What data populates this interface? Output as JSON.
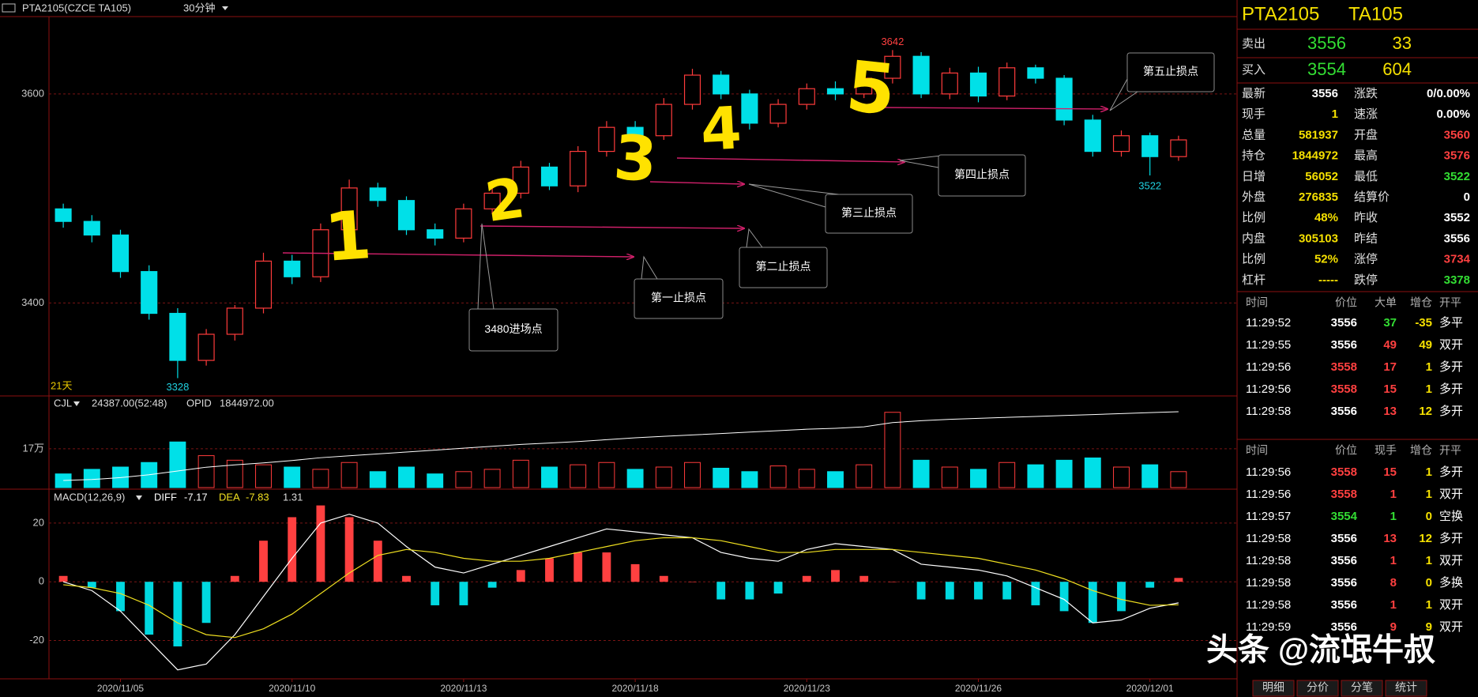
{
  "toolbar": {
    "symbol": "PTA2105(CZCE TA105)",
    "period": "30分钟"
  },
  "chart_data": [
    {
      "type": "candlestick",
      "categories": [
        null,
        null,
        "2020/11/05",
        null,
        null,
        null,
        null,
        null,
        "2020/11/10",
        null,
        null,
        null,
        null,
        null,
        "2020/11/13",
        null,
        null,
        null,
        null,
        null,
        "2020/11/18",
        null,
        null,
        null,
        null,
        null,
        "2020/11/23",
        null,
        null,
        null,
        null,
        null,
        "2020/11/26",
        null,
        null,
        null,
        null,
        null,
        "2020/12/01",
        null
      ],
      "open": [
        3490,
        3478,
        3465,
        3430,
        3390,
        3345,
        3370,
        3395,
        3440,
        3425,
        3470,
        3510,
        3498,
        3470,
        3462,
        3490,
        3505,
        3530,
        3512,
        3545,
        3568,
        3560,
        3590,
        3618,
        3600,
        3572,
        3590,
        3605,
        3600,
        3615,
        3636,
        3600,
        3620,
        3598,
        3625,
        3615,
        3575,
        3545,
        3560,
        3540
      ],
      "high": [
        3495,
        3484,
        3470,
        3436,
        3395,
        3375,
        3398,
        3448,
        3446,
        3476,
        3518,
        3515,
        3502,
        3476,
        3495,
        3512,
        3536,
        3534,
        3550,
        3574,
        3574,
        3596,
        3624,
        3622,
        3604,
        3595,
        3610,
        3612,
        3620,
        3642,
        3640,
        3625,
        3626,
        3630,
        3628,
        3618,
        3580,
        3565,
        3563,
        3560
      ],
      "low": [
        3472,
        3458,
        3424,
        3384,
        3328,
        3340,
        3364,
        3390,
        3418,
        3420,
        3465,
        3492,
        3465,
        3455,
        3458,
        3485,
        3500,
        3508,
        3506,
        3540,
        3555,
        3556,
        3585,
        3595,
        3566,
        3568,
        3585,
        3594,
        3596,
        3610,
        3596,
        3595,
        3592,
        3594,
        3610,
        3570,
        3540,
        3540,
        3522,
        3536
      ],
      "close": [
        3478,
        3465,
        3430,
        3390,
        3345,
        3370,
        3395,
        3440,
        3425,
        3470,
        3510,
        3498,
        3470,
        3462,
        3490,
        3505,
        3530,
        3512,
        3545,
        3568,
        3560,
        3590,
        3618,
        3600,
        3572,
        3590,
        3605,
        3600,
        3615,
        3636,
        3600,
        3620,
        3598,
        3625,
        3615,
        3575,
        3545,
        3560,
        3540,
        3556
      ],
      "ylim": [
        3311,
        3674
      ],
      "yticks": [
        3400,
        3600
      ],
      "grid": true,
      "up_color": "#ff3b3b",
      "down_color": "#00e0e8",
      "period_label": "21天"
    },
    {
      "type": "bar",
      "series": [
        {
          "name": "CJL",
          "values": [
            60000,
            80000,
            90000,
            110000,
            200000,
            140000,
            120000,
            100000,
            90000,
            80000,
            110000,
            70000,
            90000,
            60000,
            70000,
            80000,
            120000,
            90000,
            100000,
            110000,
            80000,
            90000,
            110000,
            85000,
            70000,
            95000,
            80000,
            70000,
            100000,
            330000,
            120000,
            90000,
            80000,
            110000,
            100000,
            120000,
            130000,
            90000,
            100000,
            70000
          ]
        },
        {
          "name": "OPID",
          "color": "#ffffff",
          "axis": "y2",
          "values": [
            1700000,
            1702000,
            1706000,
            1712000,
            1720000,
            1728000,
            1733000,
            1737000,
            1742000,
            1748000,
            1752000,
            1756000,
            1760000,
            1764000,
            1768000,
            1772000,
            1776000,
            1779000,
            1782000,
            1786000,
            1790000,
            1793000,
            1796000,
            1799000,
            1802000,
            1805000,
            1808000,
            1810000,
            1813000,
            1822000,
            1826000,
            1829000,
            1831000,
            1833000,
            1835000,
            1837000,
            1839000,
            1841000,
            1843000,
            1844972
          ]
        }
      ],
      "readout": "24387.00(52:48)",
      "opid_readout": "1844972.00",
      "ylim": [
        0,
        388000
      ],
      "yticks": [
        {
          "value": 170000,
          "label": "17万"
        }
      ],
      "y2lim": [
        1685000,
        1871600
      ],
      "grid": true
    },
    {
      "type": "macd",
      "title": "MACD(12,26,9)",
      "series": [
        {
          "name": "DIFF",
          "color": "#ffffff",
          "values": [
            0,
            -3,
            -10,
            -20,
            -30,
            -28,
            -18,
            -5,
            8,
            20,
            23,
            20,
            12,
            5,
            3,
            6,
            9,
            12,
            15,
            18,
            17,
            16,
            15,
            10,
            8,
            7,
            11,
            13,
            12,
            11,
            6,
            5,
            4,
            2,
            -2,
            -6,
            -14,
            -13,
            -9,
            -7.17
          ]
        },
        {
          "name": "DEA",
          "color": "#f0e020",
          "values": [
            -1,
            -2,
            -4,
            -8,
            -14,
            -18,
            -19,
            -16,
            -11,
            -4,
            3,
            9,
            11,
            10,
            8,
            7,
            7,
            8,
            10,
            12,
            14,
            15,
            15,
            14,
            12,
            10,
            10,
            11,
            11,
            11,
            10,
            9,
            8,
            6,
            4,
            1,
            -3,
            -6,
            -8,
            -7.83
          ]
        }
      ],
      "histogram": {
        "values": [
          2,
          -2,
          -10,
          -18,
          -22,
          -14,
          2,
          14,
          22,
          26,
          22,
          14,
          2,
          -8,
          -8,
          -2,
          4,
          8,
          10,
          10,
          6,
          2,
          0,
          -6,
          -6,
          -4,
          2,
          4,
          2,
          0,
          -6,
          -6,
          -6,
          -6,
          -8,
          -10,
          -14,
          -10,
          -2,
          1.31
        ],
        "up_color": "#ff4040",
        "down_color": "#00d8e0"
      },
      "ylim": [
        -32.5,
        31
      ],
      "yticks": [
        -20,
        0,
        20
      ],
      "grid": true
    }
  ],
  "annotations": {
    "digits": [
      "1",
      "2",
      "3",
      "4",
      "5"
    ],
    "callouts": [
      "3480进场点",
      "第一止损点",
      "第二止损点",
      "第三止损点",
      "第四止损点",
      "第五止损点"
    ]
  },
  "quote": {
    "symbol": "PTA2105",
    "code": "TA105",
    "ask": {
      "label": "卖出",
      "price": 3556,
      "volume": 33
    },
    "bid": {
      "label": "买入",
      "price": 3554,
      "volume": 604
    },
    "stats": [
      [
        {
          "label": "最新",
          "value": 3556,
          "color": "#ffffff"
        },
        {
          "label": "涨跌",
          "value": "0/0.00%",
          "color": "#ffffff"
        }
      ],
      [
        {
          "label": "现手",
          "value": 1,
          "color": "#f5e000"
        },
        {
          "label": "速涨",
          "value": "0.00%",
          "color": "#ffffff"
        }
      ],
      [
        {
          "label": "总量",
          "value": 581937,
          "color": "#f5e000"
        },
        {
          "label": "开盘",
          "value": 3560,
          "color": "#ff4040"
        }
      ],
      [
        {
          "label": "持仓",
          "value": 1844972,
          "color": "#f5e000"
        },
        {
          "label": "最高",
          "value": 3576,
          "color": "#ff4040"
        }
      ],
      [
        {
          "label": "日增",
          "value": 56052,
          "color": "#f5e000"
        },
        {
          "label": "最低",
          "value": 3522,
          "color": "#33dd33"
        }
      ],
      [
        {
          "label": "外盘",
          "value": 276835,
          "color": "#f5e000"
        },
        {
          "label": "结算价",
          "value": 0,
          "color": "#ffffff"
        }
      ],
      [
        {
          "label": "比例",
          "value": "48%",
          "color": "#f5e000"
        },
        {
          "label": "昨收",
          "value": 3552,
          "color": "#ffffff"
        }
      ],
      [
        {
          "label": "内盘",
          "value": 305103,
          "color": "#f5e000"
        },
        {
          "label": "昨结",
          "value": 3556,
          "color": "#ffffff"
        }
      ],
      [
        {
          "label": "比例",
          "value": "52%",
          "color": "#f5e000"
        },
        {
          "label": "涨停",
          "value": 3734,
          "color": "#ff4040"
        }
      ],
      [
        {
          "label": "杠杆",
          "value": "-----",
          "color": "#f5e000"
        },
        {
          "label": "跌停",
          "value": 3378,
          "color": "#33dd33"
        }
      ]
    ]
  },
  "trades_large": {
    "columns": [
      "时间",
      "价位",
      "大单",
      "增仓",
      "开平"
    ],
    "rows": [
      {
        "time": "11:29:52",
        "price": 3556,
        "qty": 37,
        "oi": -35,
        "type": "多平",
        "price_color": "#ffffff",
        "qty_color": "#33dd33"
      },
      {
        "time": "11:29:55",
        "price": 3556,
        "qty": 49,
        "oi": 49,
        "type": "双开",
        "price_color": "#ffffff",
        "qty_color": "#ff4040"
      },
      {
        "time": "11:29:56",
        "price": 3558,
        "qty": 17,
        "oi": 1,
        "type": "多开",
        "price_color": "#ff4040",
        "qty_color": "#ff4040"
      },
      {
        "time": "11:29:56",
        "price": 3558,
        "qty": 15,
        "oi": 1,
        "type": "多开",
        "price_color": "#ff4040",
        "qty_color": "#ff4040"
      },
      {
        "time": "11:29:58",
        "price": 3556,
        "qty": 13,
        "oi": 12,
        "type": "多开",
        "price_color": "#ffffff",
        "qty_color": "#ff4040"
      }
    ]
  },
  "trades": {
    "columns": [
      "时间",
      "价位",
      "现手",
      "增仓",
      "开平"
    ],
    "rows": [
      {
        "time": "11:29:56",
        "price": 3558,
        "qty": 15,
        "oi": 1,
        "type": "多开",
        "price_color": "#ff4040",
        "qty_color": "#ff4040"
      },
      {
        "time": "11:29:56",
        "price": 3558,
        "qty": 1,
        "oi": 1,
        "type": "双开",
        "price_color": "#ff4040",
        "qty_color": "#ff4040"
      },
      {
        "time": "11:29:57",
        "price": 3554,
        "qty": 1,
        "oi": 0,
        "type": "空换",
        "price_color": "#33dd33",
        "qty_color": "#33dd33"
      },
      {
        "time": "11:29:58",
        "price": 3556,
        "qty": 13,
        "oi": 12,
        "type": "多开",
        "price_color": "#ffffff",
        "qty_color": "#ff4040"
      },
      {
        "time": "11:29:58",
        "price": 3556,
        "qty": 1,
        "oi": 1,
        "type": "双开",
        "price_color": "#ffffff",
        "qty_color": "#ff4040"
      },
      {
        "time": "11:29:58",
        "price": 3556,
        "qty": 8,
        "oi": 0,
        "type": "多换",
        "price_color": "#ffffff",
        "qty_color": "#ff4040"
      },
      {
        "time": "11:29:58",
        "price": 3556,
        "qty": 1,
        "oi": 1,
        "type": "双开",
        "price_color": "#ffffff",
        "qty_color": "#ff4040"
      },
      {
        "time": "11:29:59",
        "price": 3556,
        "qty": 9,
        "oi": 9,
        "type": "双开",
        "price_color": "#ffffff",
        "qty_color": "#ff4040"
      }
    ]
  },
  "tabs": [
    "明细",
    "分价",
    "分笔",
    "统计"
  ],
  "watermark": "头条 @流氓牛叔"
}
